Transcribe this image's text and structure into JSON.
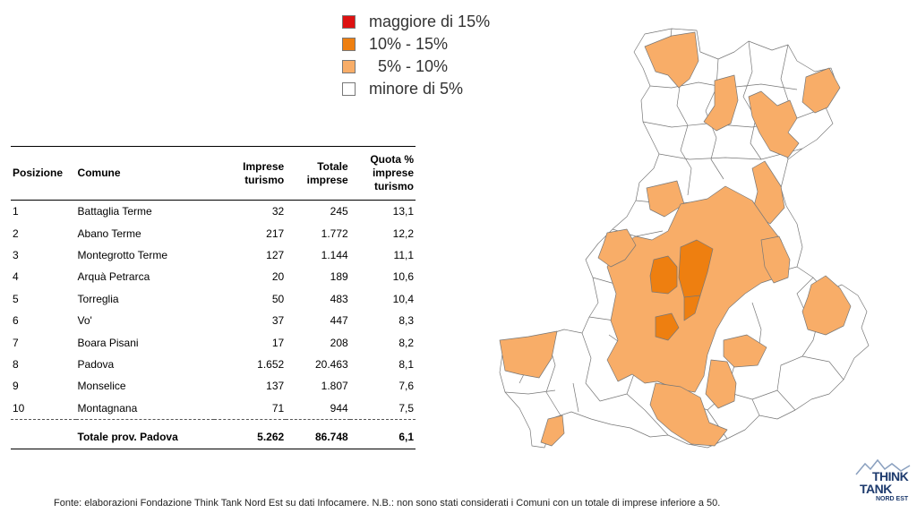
{
  "legend": {
    "items": [
      {
        "label": "maggiore di 15%",
        "color": "#dd1111"
      },
      {
        "label": "10% - 15%",
        "color": "#ee7f10"
      },
      {
        "label": "  5% - 10%",
        "color": "#f8ad68"
      },
      {
        "label": "minore di 5%",
        "color": "#ffffff"
      }
    ]
  },
  "table": {
    "headers": {
      "posizione": "Posizione",
      "comune": "Comune",
      "imprese_turismo_1": "Imprese",
      "imprese_turismo_2": "turismo",
      "totale_imprese_1": "Totale",
      "totale_imprese_2": "imprese",
      "quota_1": "Quota %",
      "quota_2": "imprese",
      "quota_3": "turismo"
    },
    "rows": [
      {
        "pos": "1",
        "comune": "Battaglia Terme",
        "imprese": "32",
        "totale": "245",
        "quota": "13,1"
      },
      {
        "pos": "2",
        "comune": "Abano Terme",
        "imprese": "217",
        "totale": "1.772",
        "quota": "12,2"
      },
      {
        "pos": "3",
        "comune": "Montegrotto Terme",
        "imprese": "127",
        "totale": "1.144",
        "quota": "11,1"
      },
      {
        "pos": "4",
        "comune": "Arquà  Petrarca",
        "imprese": "20",
        "totale": "189",
        "quota": "10,6"
      },
      {
        "pos": "5",
        "comune": "Torreglia",
        "imprese": "50",
        "totale": "483",
        "quota": "10,4"
      },
      {
        "pos": "6",
        "comune": "Vo'",
        "imprese": "37",
        "totale": "447",
        "quota": "8,3"
      },
      {
        "pos": "7",
        "comune": "Boara Pisani",
        "imprese": "17",
        "totale": "208",
        "quota": "8,2"
      },
      {
        "pos": "8",
        "comune": "Padova",
        "imprese": "1.652",
        "totale": "20.463",
        "quota": "8,1"
      },
      {
        "pos": "9",
        "comune": "Monselice",
        "imprese": "137",
        "totale": "1.807",
        "quota": "7,6"
      },
      {
        "pos": "10",
        "comune": "Montagnana",
        "imprese": "71",
        "totale": "944",
        "quota": "7,5"
      }
    ],
    "total": {
      "label": "Totale prov. Padova",
      "imprese": "5.262",
      "totale": "86.748",
      "quota": "6,1"
    }
  },
  "footer": {
    "source": "Fonte: elaborazioni Fondazione Think Tank Nord Est su dati Infocamere. N.B.: non sono stati considerati i Comuni con un totale di imprese inferiore a 50."
  },
  "logo": {
    "line1": "THINK",
    "line2": "TANK",
    "line3": "NORD EST",
    "color": "#1d3a6d"
  },
  "map_colors": {
    "high": "#ee7f10",
    "medium": "#f8ad68",
    "low": "#ffffff",
    "border": "#777777"
  }
}
